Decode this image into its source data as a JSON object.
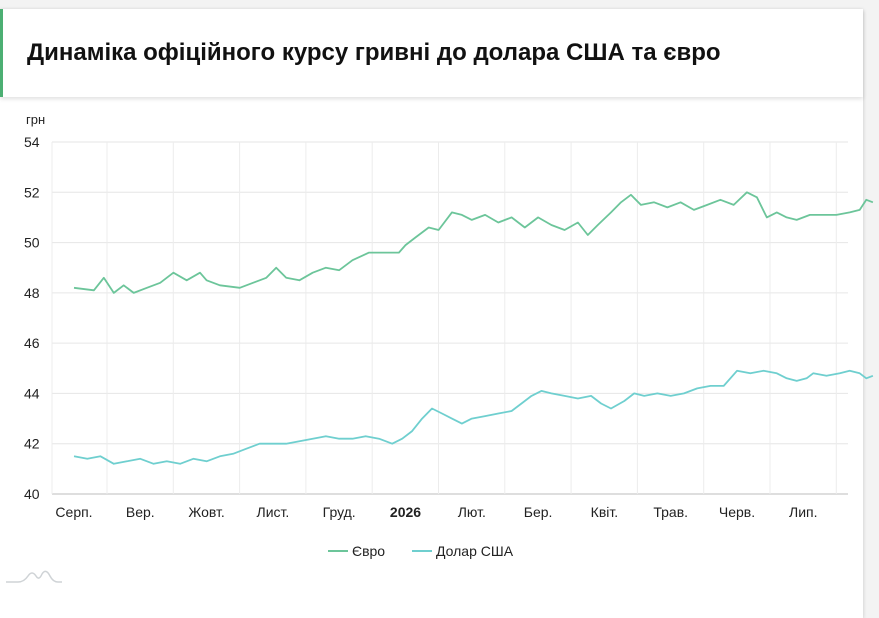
{
  "header": {
    "title": "Динаміка офіційного курсу гривні до долара США та євро"
  },
  "chart_data": {
    "type": "line",
    "title": "Динаміка офіційного курсу гривні до долара США та євро",
    "ylabel": "грн",
    "ylim": [
      40,
      54
    ],
    "yticks": [
      40,
      42,
      44,
      46,
      48,
      50,
      52,
      54
    ],
    "grid": true,
    "legend_position": "bottom-center",
    "x_ticks": [
      {
        "label": "Серп.",
        "bold": false
      },
      {
        "label": "Вер.",
        "bold": false
      },
      {
        "label": "Жовт.",
        "bold": false
      },
      {
        "label": "Лист.",
        "bold": false
      },
      {
        "label": "Груд.",
        "bold": false
      },
      {
        "label": "2026",
        "bold": true
      },
      {
        "label": "Лют.",
        "bold": false
      },
      {
        "label": "Бер.",
        "bold": false
      },
      {
        "label": "Квіт.",
        "bold": false
      },
      {
        "label": "Трав.",
        "bold": false
      },
      {
        "label": "Черв.",
        "bold": false
      },
      {
        "label": "Лип.",
        "bold": false
      }
    ],
    "x_range_months": [
      0,
      12.5
    ],
    "series": [
      {
        "name": "Євро",
        "color": "#6cc59a",
        "points": [
          [
            0.0,
            48.2
          ],
          [
            0.3,
            48.1
          ],
          [
            0.45,
            48.6
          ],
          [
            0.6,
            48.0
          ],
          [
            0.75,
            48.3
          ],
          [
            0.9,
            48.0
          ],
          [
            1.1,
            48.2
          ],
          [
            1.3,
            48.4
          ],
          [
            1.5,
            48.8
          ],
          [
            1.7,
            48.5
          ],
          [
            1.9,
            48.8
          ],
          [
            2.0,
            48.5
          ],
          [
            2.2,
            48.3
          ],
          [
            2.5,
            48.2
          ],
          [
            2.7,
            48.4
          ],
          [
            2.9,
            48.6
          ],
          [
            3.05,
            49.0
          ],
          [
            3.2,
            48.6
          ],
          [
            3.4,
            48.5
          ],
          [
            3.6,
            48.8
          ],
          [
            3.8,
            49.0
          ],
          [
            4.0,
            48.9
          ],
          [
            4.2,
            49.3
          ],
          [
            4.45,
            49.6
          ],
          [
            4.7,
            49.6
          ],
          [
            4.9,
            49.6
          ],
          [
            5.0,
            49.9
          ],
          [
            5.15,
            50.2
          ],
          [
            5.35,
            50.6
          ],
          [
            5.5,
            50.5
          ],
          [
            5.7,
            51.2
          ],
          [
            5.85,
            51.1
          ],
          [
            6.0,
            50.9
          ],
          [
            6.2,
            51.1
          ],
          [
            6.4,
            50.8
          ],
          [
            6.6,
            51.0
          ],
          [
            6.8,
            50.6
          ],
          [
            7.0,
            51.0
          ],
          [
            7.2,
            50.7
          ],
          [
            7.4,
            50.5
          ],
          [
            7.6,
            50.8
          ],
          [
            7.75,
            50.3
          ],
          [
            7.9,
            50.7
          ],
          [
            8.1,
            51.2
          ],
          [
            8.25,
            51.6
          ],
          [
            8.4,
            51.9
          ],
          [
            8.55,
            51.5
          ],
          [
            8.75,
            51.6
          ],
          [
            8.95,
            51.4
          ],
          [
            9.15,
            51.6
          ],
          [
            9.35,
            51.3
          ],
          [
            9.55,
            51.5
          ],
          [
            9.75,
            51.7
          ],
          [
            9.95,
            51.5
          ],
          [
            10.15,
            52.0
          ],
          [
            10.3,
            51.8
          ],
          [
            10.45,
            51.0
          ],
          [
            10.6,
            51.2
          ],
          [
            10.75,
            51.0
          ],
          [
            10.9,
            50.9
          ],
          [
            11.1,
            51.1
          ],
          [
            11.3,
            51.1
          ],
          [
            11.5,
            51.1
          ],
          [
            11.7,
            51.2
          ],
          [
            11.85,
            51.3
          ],
          [
            11.95,
            51.7
          ],
          [
            12.05,
            51.6
          ]
        ]
      },
      {
        "name": "Долар США",
        "color": "#6fcfcf",
        "points": [
          [
            0.0,
            41.5
          ],
          [
            0.2,
            41.4
          ],
          [
            0.4,
            41.5
          ],
          [
            0.6,
            41.2
          ],
          [
            0.8,
            41.3
          ],
          [
            1.0,
            41.4
          ],
          [
            1.2,
            41.2
          ],
          [
            1.4,
            41.3
          ],
          [
            1.6,
            41.2
          ],
          [
            1.8,
            41.4
          ],
          [
            2.0,
            41.3
          ],
          [
            2.2,
            41.5
          ],
          [
            2.4,
            41.6
          ],
          [
            2.6,
            41.8
          ],
          [
            2.8,
            42.0
          ],
          [
            3.0,
            42.0
          ],
          [
            3.2,
            42.0
          ],
          [
            3.4,
            42.1
          ],
          [
            3.6,
            42.2
          ],
          [
            3.8,
            42.3
          ],
          [
            4.0,
            42.2
          ],
          [
            4.2,
            42.2
          ],
          [
            4.4,
            42.3
          ],
          [
            4.6,
            42.2
          ],
          [
            4.8,
            42.0
          ],
          [
            4.95,
            42.2
          ],
          [
            5.1,
            42.5
          ],
          [
            5.25,
            43.0
          ],
          [
            5.4,
            43.4
          ],
          [
            5.55,
            43.2
          ],
          [
            5.7,
            43.0
          ],
          [
            5.85,
            42.8
          ],
          [
            6.0,
            43.0
          ],
          [
            6.2,
            43.1
          ],
          [
            6.4,
            43.2
          ],
          [
            6.6,
            43.3
          ],
          [
            6.75,
            43.6
          ],
          [
            6.9,
            43.9
          ],
          [
            7.05,
            44.1
          ],
          [
            7.2,
            44.0
          ],
          [
            7.4,
            43.9
          ],
          [
            7.6,
            43.8
          ],
          [
            7.8,
            43.9
          ],
          [
            7.95,
            43.6
          ],
          [
            8.1,
            43.4
          ],
          [
            8.3,
            43.7
          ],
          [
            8.45,
            44.0
          ],
          [
            8.6,
            43.9
          ],
          [
            8.8,
            44.0
          ],
          [
            9.0,
            43.9
          ],
          [
            9.2,
            44.0
          ],
          [
            9.4,
            44.2
          ],
          [
            9.6,
            44.3
          ],
          [
            9.8,
            44.3
          ],
          [
            10.0,
            44.9
          ],
          [
            10.2,
            44.8
          ],
          [
            10.4,
            44.9
          ],
          [
            10.6,
            44.8
          ],
          [
            10.75,
            44.6
          ],
          [
            10.9,
            44.5
          ],
          [
            11.05,
            44.6
          ],
          [
            11.15,
            44.8
          ],
          [
            11.35,
            44.7
          ],
          [
            11.55,
            44.8
          ],
          [
            11.7,
            44.9
          ],
          [
            11.85,
            44.8
          ],
          [
            11.95,
            44.6
          ],
          [
            12.05,
            44.7
          ]
        ]
      }
    ]
  }
}
